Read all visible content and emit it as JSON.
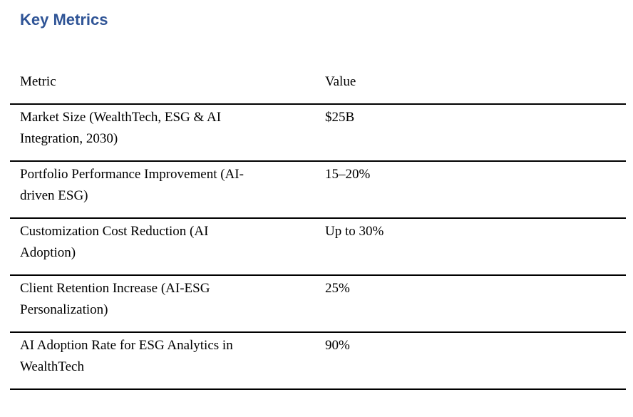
{
  "heading": {
    "text": "Key Metrics"
  },
  "colors": {
    "heading_blue": "#2F5496",
    "body_text": "#000000",
    "table_rule": "#000000",
    "background": "#FFFFFF"
  },
  "table": {
    "headers": [
      "Metric",
      "Value"
    ],
    "rows": [
      {
        "lines": [
          "Market Size (WealthTech, ESG & AI",
          "Integration, 2030)"
        ],
        "value": "$25B"
      },
      {
        "lines": [
          "Portfolio Performance Improvement (AI-",
          "driven ESG)"
        ],
        "value": "15–20%"
      },
      {
        "lines": [
          "Customization Cost Reduction (AI",
          "Adoption)"
        ],
        "value": "Up to 30%"
      },
      {
        "lines": [
          "Client Retention Increase (AI-ESG",
          "Personalization)"
        ],
        "value": "25%"
      },
      {
        "lines": [
          "AI Adoption Rate for ESG Analytics in",
          "WealthTech"
        ],
        "value": "90%"
      }
    ]
  }
}
